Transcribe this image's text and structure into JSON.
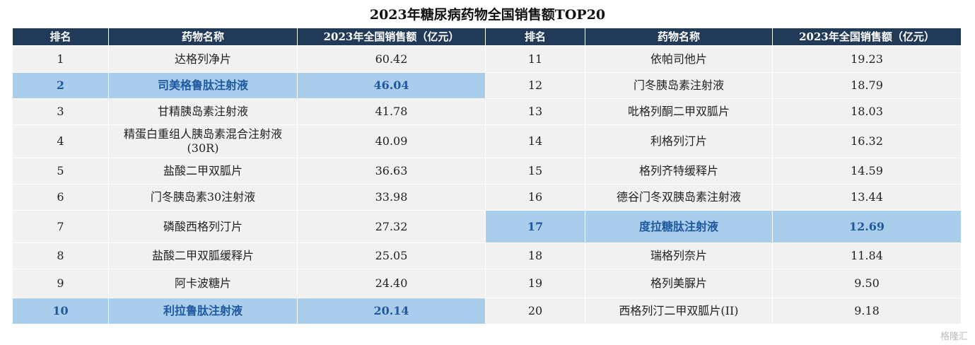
{
  "title": "2023年糖尿病药物全国销售额TOP20",
  "headers": [
    "排名",
    "药物名称",
    "2023年全国销售额（亿元）",
    "排名",
    "药物名称",
    "2023年全国销售额（亿元）"
  ],
  "left": [
    {
      "rank": "1",
      "name": "达格列净片",
      "sales": "60.42",
      "highlight": false
    },
    {
      "rank": "2",
      "name": "司美格鲁肽注射液",
      "sales": "46.04",
      "highlight": true
    },
    {
      "rank": "3",
      "name": "甘精胰岛素注射液",
      "sales": "41.78",
      "highlight": false
    },
    {
      "rank": "4",
      "name": "精蛋白重组人胰岛素混合注射液(30R)",
      "sales": "40.09",
      "highlight": false
    },
    {
      "rank": "5",
      "name": "盐酸二甲双胍片",
      "sales": "36.63",
      "highlight": false
    },
    {
      "rank": "6",
      "name": "门冬胰岛素30注射液",
      "sales": "33.98",
      "highlight": false
    },
    {
      "rank": "7",
      "name": "磷酸西格列汀片",
      "sales": "27.32",
      "highlight": false
    },
    {
      "rank": "8",
      "name": "盐酸二甲双胍缓释片",
      "sales": "25.05",
      "highlight": false
    },
    {
      "rank": "9",
      "name": "阿卡波糖片",
      "sales": "24.40",
      "highlight": false
    },
    {
      "rank": "10",
      "name": "利拉鲁肽注射液",
      "sales": "20.14",
      "highlight": true
    }
  ],
  "right": [
    {
      "rank": "11",
      "name": "依帕司他片",
      "sales": "19.23",
      "highlight": false
    },
    {
      "rank": "12",
      "name": "门冬胰岛素注射液",
      "sales": "18.79",
      "highlight": false
    },
    {
      "rank": "13",
      "name": "吡格列酮二甲双胍片",
      "sales": "18.03",
      "highlight": false
    },
    {
      "rank": "14",
      "name": "利格列汀片",
      "sales": "16.32",
      "highlight": false
    },
    {
      "rank": "15",
      "name": "格列齐特缓释片",
      "sales": "14.59",
      "highlight": false
    },
    {
      "rank": "16",
      "name": "德谷门冬双胰岛素注射液",
      "sales": "13.44",
      "highlight": false
    },
    {
      "rank": "17",
      "name": "度拉糖肽注射液",
      "sales": "12.69",
      "highlight": true
    },
    {
      "rank": "18",
      "name": "瑞格列奈片",
      "sales": "11.84",
      "highlight": false
    },
    {
      "rank": "19",
      "name": "格列美脲片",
      "sales": "9.50",
      "highlight": false
    },
    {
      "rank": "20",
      "name": "西格列汀二甲双胍片(II)",
      "sales": "9.18",
      "highlight": false
    }
  ],
  "watermark": "格隆汇"
}
